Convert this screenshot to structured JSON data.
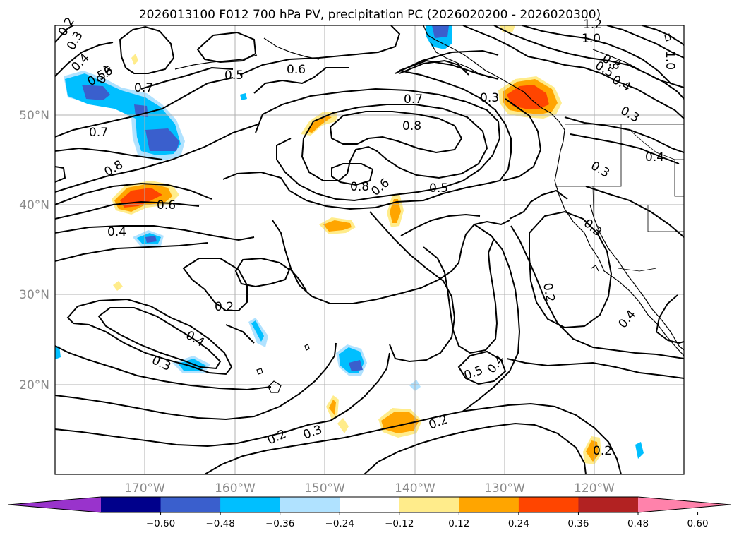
{
  "title": "2026013100 F012 700 hPa PV, precipitation PC (2026020200 - 2026020300)",
  "map": {
    "lat_labels": [
      "50°N",
      "40°N",
      "30°N",
      "20°N"
    ],
    "lon_labels": [
      "170°W",
      "160°W",
      "150°W",
      "140°W",
      "130°W",
      "120°W"
    ]
  },
  "contour_labels": [
    "0.2",
    "0.4",
    "0.3",
    "0.56",
    "0.7",
    "0.5",
    "0.6",
    "0.7",
    "0.8",
    "0.8",
    "0.6",
    "0.4",
    "0.7",
    "0.8",
    "0.8",
    "0.6",
    "0.5",
    "0.3",
    "1.2",
    "1.0",
    "0.8",
    "0.5",
    "0.4",
    "0.3",
    "1.0",
    "0.4",
    "0.3",
    "0.3",
    "0.2",
    "0.4",
    "0.2",
    "0.4",
    "0.3",
    "0.5",
    "0.4",
    "0.2",
    "0.3",
    "0.2",
    "0.2",
    "0.4"
  ],
  "colorbar": {
    "ticks": [
      "−0.60",
      "−0.48",
      "−0.36",
      "−0.24",
      "−0.12",
      "0.12",
      "0.24",
      "0.36",
      "0.48",
      "0.60"
    ],
    "colors": [
      "#9933cc",
      "#00008b",
      "#3a5fcd",
      "#00bfff",
      "#b0e2ff",
      "#ffffff",
      "#ffec8b",
      "#ffa500",
      "#ff4500",
      "#b22222",
      "#ff82ab"
    ]
  },
  "fill_colors": {
    "light_blue": "#b0e2ff",
    "blue": "#00bfff",
    "royal_blue": "#3a5fcd",
    "light_yellow": "#ffec8b",
    "orange": "#ffa500",
    "red_orange": "#ff4500"
  }
}
